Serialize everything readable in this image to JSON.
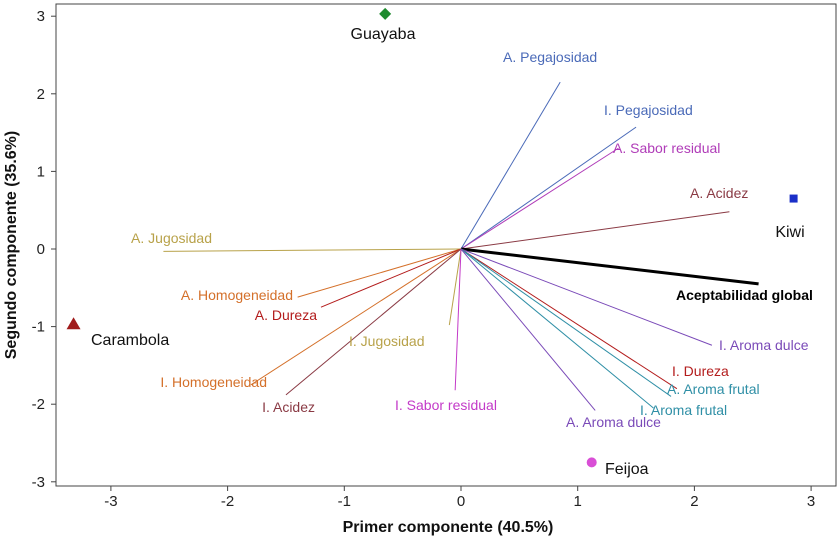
{
  "chart_data": {
    "type": "scatter",
    "subtype": "biplot",
    "xlabel": "Primer componente (40.5%)",
    "ylabel": "Segundo componente (35.6%)",
    "xlim": [
      -3.45,
      3.1
    ],
    "ylim": [
      -3.0,
      3.15
    ],
    "x_ticks": [
      "-3",
      "-2",
      "-1",
      "0",
      "1",
      "2",
      "3"
    ],
    "y_ticks": [
      "-3",
      "-2",
      "-1",
      "0",
      "1",
      "2",
      "3"
    ],
    "points": [
      {
        "label": "Guayaba",
        "x": -0.65,
        "y": 3.03,
        "shape": "diamond",
        "color": "#1e8a2e"
      },
      {
        "label": "Kiwi",
        "x": 2.85,
        "y": 0.65,
        "shape": "square",
        "color": "#1a2fc8"
      },
      {
        "label": "Carambola",
        "x": -3.32,
        "y": -0.97,
        "shape": "triangle",
        "color": "#a01b1b"
      },
      {
        "label": "Feijoa",
        "x": 1.12,
        "y": -2.75,
        "shape": "circle",
        "color": "#d94fd6"
      }
    ],
    "vectors": [
      {
        "label": "A. Pegajosidad",
        "x": 0.85,
        "y": 2.15,
        "color": "#4a6ab8"
      },
      {
        "label": "I. Pegajosidad",
        "x": 1.5,
        "y": 1.57,
        "color": "#4a6ab8"
      },
      {
        "label": "A. Sabor residual",
        "x": 1.35,
        "y": 1.3,
        "color": "#b03cb8"
      },
      {
        "label": "A. Acidez",
        "x": 2.3,
        "y": 0.48,
        "color": "#8a3a44"
      },
      {
        "label": "A. Jugosidad",
        "x": -2.55,
        "y": -0.03,
        "color": "#b8a24a"
      },
      {
        "label": "Aceptabilidad global",
        "x": 2.55,
        "y": -0.45,
        "color": "#000000",
        "bold": true
      },
      {
        "label": "A. Homogeneidad",
        "x": -1.4,
        "y": -0.62,
        "color": "#d4702a"
      },
      {
        "label": "A. Dureza",
        "x": -1.2,
        "y": -0.75,
        "color": "#b31c1c"
      },
      {
        "label": "I. Jugosidad",
        "x": -0.1,
        "y": -0.98,
        "color": "#b8a24a"
      },
      {
        "label": "I. Aroma dulce",
        "x": 2.15,
        "y": -1.24,
        "color": "#7a4ab8"
      },
      {
        "label": "I. Homogeneidad",
        "x": -1.8,
        "y": -1.75,
        "color": "#d4702a"
      },
      {
        "label": "I. Acidez",
        "x": -1.5,
        "y": -1.88,
        "color": "#8a3a44"
      },
      {
        "label": "I. Sabor residual",
        "x": -0.05,
        "y": -1.82,
        "color": "#c33ac8"
      },
      {
        "label": "I. Dureza",
        "x": 1.85,
        "y": -1.8,
        "color": "#b31c1c"
      },
      {
        "label": "A. Aroma frutal",
        "x": 1.8,
        "y": -1.9,
        "color": "#2f8fa6"
      },
      {
        "label": "I. Aroma frutal",
        "x": 1.65,
        "y": -2.05,
        "color": "#2f8fa6"
      },
      {
        "label": "A. Aroma dulce",
        "x": 1.15,
        "y": -2.08,
        "color": "#7a4ab8"
      }
    ]
  }
}
